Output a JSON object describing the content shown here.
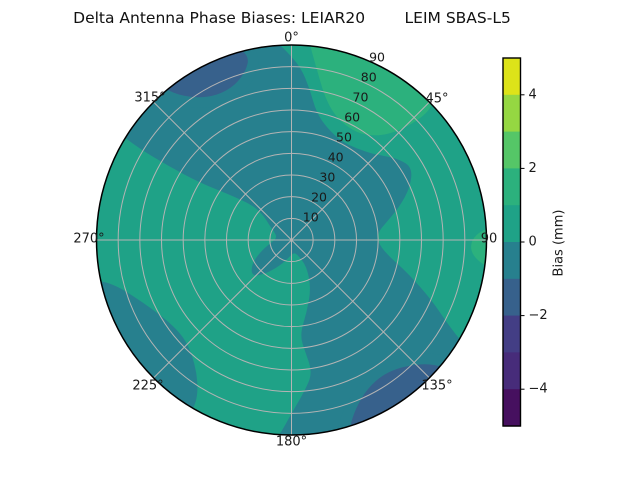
{
  "title": "Delta Antenna Phase Biases: LEIAR20        LEIM SBAS-L5",
  "antenna": "LEIAR20",
  "signal": "LEIM SBAS-L5",
  "text_color": "#1a1a1a",
  "grid_color": "#b4b4b4",
  "rim_color": "#000000",
  "chart_data": {
    "type": "heatmap",
    "subtype": "polar_filled_contour",
    "title": "Delta Antenna Phase Biases: LEIAR20        LEIM SBAS-L5",
    "angular_ticks_deg": [
      0,
      45,
      90,
      135,
      180,
      225,
      270,
      315
    ],
    "angular_tick_labels": [
      "0°",
      "45°",
      "90",
      "135°",
      "180°",
      "225°",
      "270°",
      "315°"
    ],
    "radial_ticks": [
      10,
      20,
      30,
      40,
      50,
      60,
      70,
      80,
      90
    ],
    "radial_tick_labels": [
      "10",
      "20",
      "30",
      "40",
      "50",
      "60",
      "70",
      "80",
      "90"
    ],
    "radial_max": 90,
    "radial_label_angle_deg": 22.5,
    "grid": true,
    "colorbar": {
      "label": "Bias (mm)",
      "vmin": -5,
      "vmax": 5,
      "tick_values": [
        4,
        2,
        0,
        -2,
        -4
      ],
      "tick_labels": [
        "4",
        "2",
        "0",
        "−2",
        "−4"
      ],
      "n_segments": 10,
      "segment_colors_top_to_bottom": [
        "#dde319",
        "#95d742",
        "#55c667",
        "#2cb17d",
        "#1fa287",
        "#27808e",
        "#37618c",
        "#433e85",
        "#472c7a",
        "#46105f"
      ]
    },
    "level_colors": {
      "1_2": "#2cb17d",
      "0_1": "#1fa287",
      "-1_0": "#27808e",
      "-2_-1": "#37618c"
    },
    "base_level": "-1_0",
    "regions_note": "points are [azimuth_deg_clockwise_from_north, radius_units]; r=97 means clipped at outer rim (r=90)",
    "regions": [
      {
        "name": "southwest-teal-green",
        "level": "0_1",
        "bias_range_mm": [
          0,
          1
        ],
        "points": [
          [
            302,
            97
          ],
          [
            290,
            97
          ],
          [
            277,
            97
          ],
          [
            264,
            97
          ],
          [
            251,
            97
          ],
          [
            238,
            97
          ],
          [
            225,
            97
          ],
          [
            212,
            97
          ],
          [
            199,
            97
          ],
          [
            188,
            97
          ],
          [
            184,
            92
          ],
          [
            180,
            80
          ],
          [
            175,
            70
          ],
          [
            171,
            62
          ],
          [
            173,
            52
          ],
          [
            175,
            44
          ],
          [
            168,
            34
          ],
          [
            158,
            24
          ],
          [
            150,
            14
          ],
          [
            158,
            7
          ],
          [
            172,
            6
          ],
          [
            188,
            8
          ],
          [
            204,
            13
          ],
          [
            218,
            20
          ],
          [
            228,
            25
          ],
          [
            240,
            21
          ],
          [
            252,
            14
          ],
          [
            264,
            9
          ],
          [
            278,
            7
          ],
          [
            292,
            8
          ],
          [
            303,
            12
          ],
          [
            311,
            17
          ],
          [
            312,
            24
          ],
          [
            306,
            36
          ],
          [
            302,
            50
          ],
          [
            301,
            66
          ],
          [
            301,
            82
          ]
        ]
      },
      {
        "name": "east-north-teal-green",
        "level": "0_1",
        "bias_range_mm": [
          0,
          1
        ],
        "points": [
          [
            -6,
            97
          ],
          [
            4,
            97
          ],
          [
            16,
            97
          ],
          [
            28,
            97
          ],
          [
            40,
            97
          ],
          [
            52,
            97
          ],
          [
            64,
            97
          ],
          [
            76,
            97
          ],
          [
            88,
            97
          ],
          [
            100,
            97
          ],
          [
            111,
            97
          ],
          [
            122,
            97
          ],
          [
            119,
            84
          ],
          [
            113,
            70
          ],
          [
            106,
            56
          ],
          [
            99,
            45
          ],
          [
            92,
            40
          ],
          [
            85,
            40
          ],
          [
            79,
            45
          ],
          [
            73,
            52
          ],
          [
            66,
            60
          ],
          [
            59,
            65
          ],
          [
            53,
            62
          ],
          [
            48,
            58
          ],
          [
            44,
            55
          ],
          [
            36,
            52
          ],
          [
            27,
            51
          ],
          [
            18,
            54
          ],
          [
            11,
            60
          ],
          [
            7,
            70
          ],
          [
            3,
            80
          ],
          [
            -2,
            88
          ],
          [
            -5,
            93
          ]
        ]
      },
      {
        "name": "north-mint-patch",
        "level": "1_2",
        "bias_range_mm": [
          1,
          2
        ],
        "points": [
          [
            4,
            97
          ],
          [
            12,
            97
          ],
          [
            20,
            97
          ],
          [
            28,
            97
          ],
          [
            36,
            97
          ],
          [
            44,
            97
          ],
          [
            47,
            88
          ],
          [
            46,
            76
          ],
          [
            42,
            65
          ],
          [
            35,
            59
          ],
          [
            27,
            58
          ],
          [
            19,
            61
          ],
          [
            13,
            68
          ],
          [
            9,
            78
          ],
          [
            6,
            88
          ]
        ]
      },
      {
        "name": "east-mint-sliver",
        "level": "1_2",
        "bias_range_mm": [
          1,
          2
        ],
        "points": [
          [
            86,
            97
          ],
          [
            87,
            88
          ],
          [
            90,
            83
          ],
          [
            94,
            83
          ],
          [
            97,
            88
          ],
          [
            98,
            93
          ],
          [
            99,
            97
          ]
        ]
      },
      {
        "name": "southwest-darkteal-arc",
        "level": "-1_0",
        "bias_range_mm": [
          -1,
          0
        ],
        "points": [
          [
            258,
            97
          ],
          [
            247,
            97
          ],
          [
            236,
            97
          ],
          [
            225,
            97
          ],
          [
            214,
            97
          ],
          [
            210,
            92
          ],
          [
            211,
            84
          ],
          [
            215,
            76
          ],
          [
            221,
            70
          ],
          [
            228,
            67
          ],
          [
            236,
            68
          ],
          [
            244,
            72
          ],
          [
            250,
            77
          ],
          [
            255,
            83
          ],
          [
            258,
            90
          ]
        ]
      },
      {
        "name": "northwest-blue-halo",
        "level": "-1_0",
        "bias_range_mm": [
          -1,
          0
        ],
        "points": [
          [
            316,
            97
          ],
          [
            318,
            85
          ],
          [
            324,
            75
          ],
          [
            332,
            70
          ],
          [
            340,
            71
          ],
          [
            347,
            76
          ],
          [
            350,
            84
          ],
          [
            349,
            92
          ],
          [
            346,
            97
          ],
          [
            336,
            97
          ],
          [
            326,
            97
          ]
        ]
      },
      {
        "name": "northwest-blue",
        "level": "-2_-1",
        "bias_range_mm": [
          -2,
          -1
        ],
        "points": [
          [
            319,
            97
          ],
          [
            321,
            87
          ],
          [
            326,
            79
          ],
          [
            333,
            75
          ],
          [
            340,
            76
          ],
          [
            345,
            81
          ],
          [
            347,
            87
          ],
          [
            344,
            93
          ],
          [
            341,
            97
          ],
          [
            333,
            97
          ],
          [
            326,
            97
          ]
        ]
      },
      {
        "name": "southeast-blue-halo",
        "level": "-1_0",
        "bias_range_mm": [
          -1,
          0
        ],
        "points": [
          [
            125,
            97
          ],
          [
            128,
            85
          ],
          [
            134,
            75
          ],
          [
            143,
            70
          ],
          [
            153,
            72
          ],
          [
            161,
            79
          ],
          [
            166,
            88
          ],
          [
            167,
            97
          ],
          [
            157,
            97
          ],
          [
            146,
            97
          ],
          [
            135,
            97
          ]
        ]
      },
      {
        "name": "southeast-blue",
        "level": "-2_-1",
        "bias_range_mm": [
          -2,
          -1
        ],
        "points": [
          [
            129,
            97
          ],
          [
            131,
            87
          ],
          [
            137,
            79
          ],
          [
            145,
            75
          ],
          [
            153,
            77
          ],
          [
            159,
            83
          ],
          [
            163,
            91
          ],
          [
            164,
            97
          ],
          [
            152,
            97
          ],
          [
            140,
            97
          ]
        ]
      }
    ]
  }
}
